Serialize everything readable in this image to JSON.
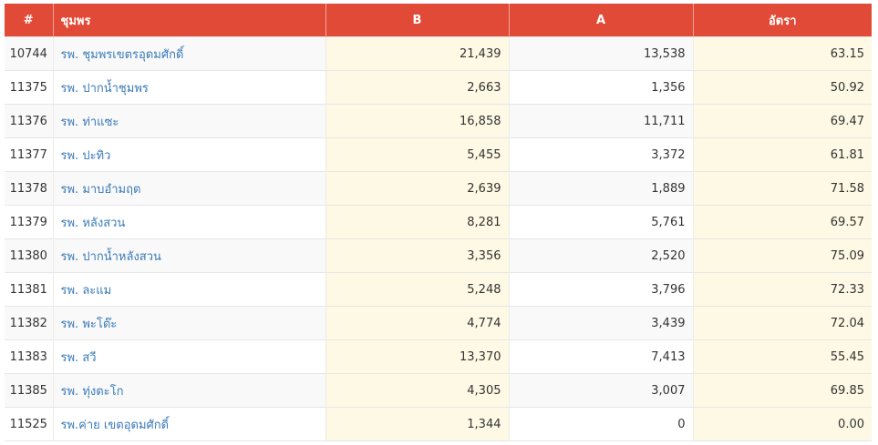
{
  "table": {
    "headers": {
      "id": "#",
      "name": "ชุมพร",
      "b": "B",
      "a": "A",
      "rate": "อัตรา"
    },
    "rows": [
      {
        "id": "10744",
        "name": "รพ. ชุมพรเขตรอุดมศักดิ์",
        "b": "21,439",
        "a": "13,538",
        "rate": "63.15"
      },
      {
        "id": "11375",
        "name": "รพ. ปากน้ำชุมพร",
        "b": "2,663",
        "a": "1,356",
        "rate": "50.92"
      },
      {
        "id": "11376",
        "name": "รพ. ท่าแซะ",
        "b": "16,858",
        "a": "11,711",
        "rate": "69.47"
      },
      {
        "id": "11377",
        "name": "รพ. ปะทิว",
        "b": "5,455",
        "a": "3,372",
        "rate": "61.81"
      },
      {
        "id": "11378",
        "name": "รพ. มาบอำมฤต",
        "b": "2,639",
        "a": "1,889",
        "rate": "71.58"
      },
      {
        "id": "11379",
        "name": "รพ. หลังสวน",
        "b": "8,281",
        "a": "5,761",
        "rate": "69.57"
      },
      {
        "id": "11380",
        "name": "รพ. ปากน้ำหลังสวน",
        "b": "3,356",
        "a": "2,520",
        "rate": "75.09"
      },
      {
        "id": "11381",
        "name": "รพ. ละแม",
        "b": "5,248",
        "a": "3,796",
        "rate": "72.33"
      },
      {
        "id": "11382",
        "name": "รพ. พะโต๊ะ",
        "b": "4,774",
        "a": "3,439",
        "rate": "72.04"
      },
      {
        "id": "11383",
        "name": "รพ. สวี",
        "b": "13,370",
        "a": "7,413",
        "rate": "55.45"
      },
      {
        "id": "11385",
        "name": "รพ. ทุ่งตะโก",
        "b": "4,305",
        "a": "3,007",
        "rate": "69.85"
      },
      {
        "id": "11525",
        "name": "รพ.ค่าย เขตอุดมศักดิ์",
        "b": "1,344",
        "a": "0",
        "rate": "0.00"
      }
    ]
  },
  "colors": {
    "header_bg": "#e14a36",
    "header_text": "#ffffff",
    "link": "#3a7ab8",
    "highlight_col": "#fdf9e4",
    "stripe": "#f9f9f9"
  }
}
